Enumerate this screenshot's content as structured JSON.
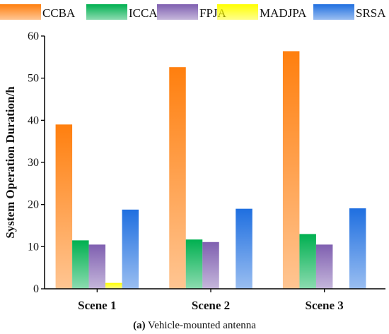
{
  "chart_data": {
    "type": "bar",
    "categories": [
      "Scene 1",
      "Scene 2",
      "Scene 3"
    ],
    "series": [
      {
        "name": "CCBA",
        "values": [
          39.0,
          52.6,
          56.4
        ],
        "color": "#ff7f0e"
      },
      {
        "name": "ICCA",
        "values": [
          11.5,
          11.7,
          13.0
        ],
        "color": "#00b050"
      },
      {
        "name": "FPJA",
        "values": [
          10.5,
          11.1,
          10.5
        ],
        "color": "#7f5fb0"
      },
      {
        "name": "MADJPA",
        "values": [
          1.4,
          0,
          0
        ],
        "color": "#ffff00"
      },
      {
        "name": "SRSA",
        "values": [
          18.8,
          19.0,
          19.1
        ],
        "color": "#1f6fe0"
      }
    ],
    "ylabel": "System Operation Duration/h",
    "xlabel": "",
    "ylim": [
      0,
      60
    ],
    "yticks": [
      0,
      10,
      20,
      30,
      40,
      50,
      60
    ],
    "legend_position": "top",
    "grid": false,
    "caption_prefix": "(a)",
    "caption_text": " Vehicle-mounted antenna"
  }
}
